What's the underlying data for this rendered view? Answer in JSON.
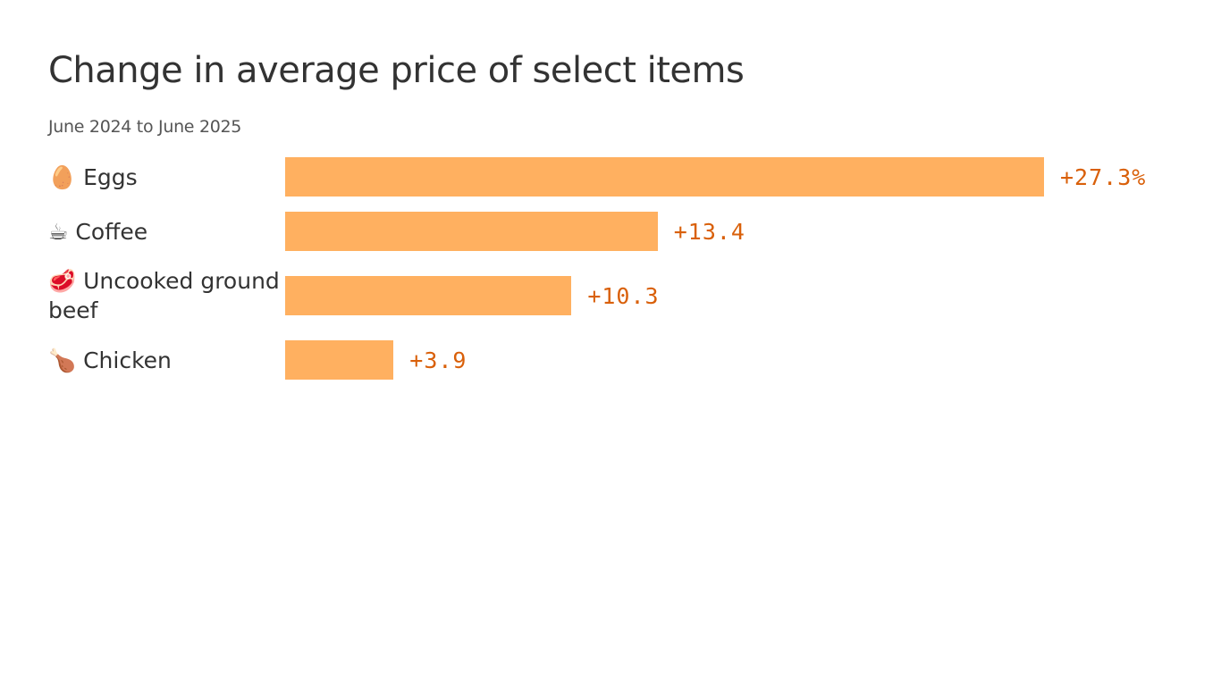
{
  "chart_data": {
    "type": "bar",
    "orientation": "horizontal",
    "title": "Change in average price of select items",
    "subtitle": "June 2024 to June 2025",
    "categories": [
      "🥚 Eggs",
      "☕ Coffee",
      "🥩 Uncooked ground beef",
      "🍗 Chicken"
    ],
    "values": [
      27.3,
      13.4,
      10.3,
      3.9
    ],
    "value_labels": [
      "+27.3%",
      "+13.4",
      "+10.3",
      "+3.9"
    ],
    "color": "#ffb060"
  }
}
